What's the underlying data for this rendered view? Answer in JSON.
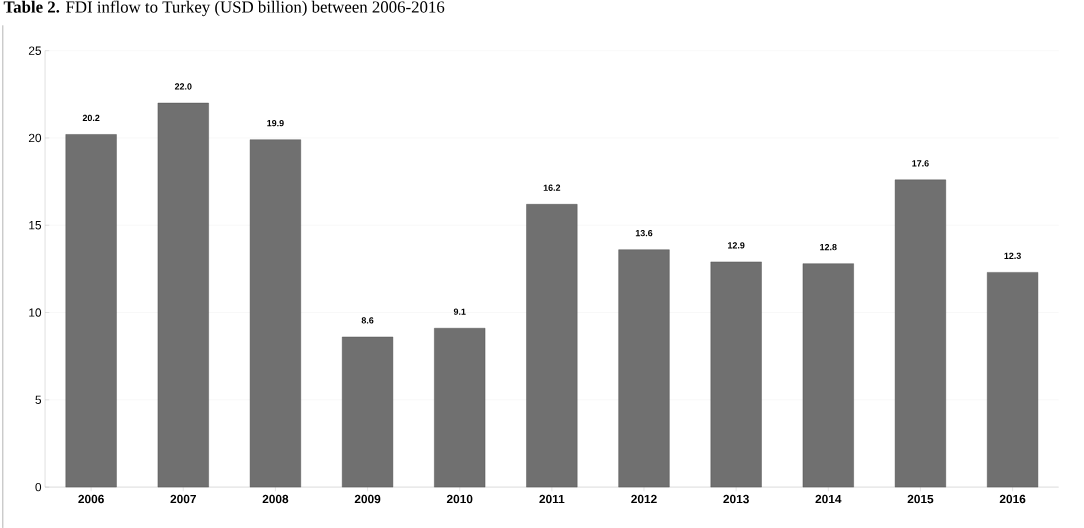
{
  "chart_data": {
    "type": "bar",
    "title": "**Table 2.** FDI inflow to Turkey (USD billion) between 2006-2016",
    "categories": [
      "2006",
      "2007",
      "2008",
      "2009",
      "2010",
      "2011",
      "2012",
      "2013",
      "2014",
      "2015",
      "2016"
    ],
    "values": [
      20.2,
      22.0,
      19.9,
      8.6,
      9.1,
      16.2,
      13.6,
      12.9,
      12.8,
      17.6,
      12.3
    ],
    "value_labels": [
      "20.2",
      "22.0",
      "19.9",
      "8.6",
      "9.1",
      "16.2",
      "13.6",
      "12.9",
      "12.8",
      "17.6",
      "12.3"
    ],
    "color": "#707070",
    "ylim": [
      0,
      25
    ],
    "yticks": [
      0,
      5,
      10,
      15,
      20,
      25
    ],
    "grid": "y"
  }
}
